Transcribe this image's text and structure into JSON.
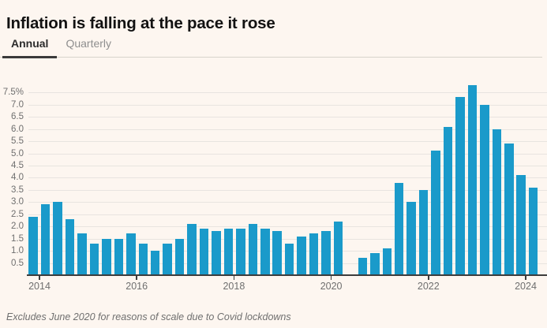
{
  "tabs": [
    {
      "label": "Annual",
      "active": true
    },
    {
      "label": "Quarterly",
      "active": false
    }
  ],
  "chart_data": {
    "type": "bar",
    "title": "Inflation is falling at the pace it rose",
    "note": "Excludes June 2020 for reasons of scale due to Covid lockdowns",
    "bar_color": "#1a9aca",
    "background_color": "#fdf6f0",
    "grid": true,
    "ylim": [
      0,
      8
    ],
    "yticks": [
      "7.5%",
      "7.0",
      "6.5",
      "6.0",
      "5.5",
      "5.0",
      "4.5",
      "4.0",
      "3.5",
      "3.0",
      "2.5",
      "2.0",
      "1.5",
      "1.0",
      "0.5"
    ],
    "year_ticks": [
      "2014",
      "2016",
      "2018",
      "2020",
      "2022",
      "2024"
    ],
    "excluded_quarter": "Q2 2020",
    "quarters": [
      {
        "label": "Q4 2013",
        "value": 2.4
      },
      {
        "label": "Q1 2014",
        "value": 2.9
      },
      {
        "label": "Q2 2014",
        "value": 3.0
      },
      {
        "label": "Q3 2014",
        "value": 2.3
      },
      {
        "label": "Q4 2014",
        "value": 1.7
      },
      {
        "label": "Q1 2015",
        "value": 1.3
      },
      {
        "label": "Q2 2015",
        "value": 1.5
      },
      {
        "label": "Q3 2015",
        "value": 1.5
      },
      {
        "label": "Q4 2015",
        "value": 1.7
      },
      {
        "label": "Q1 2016",
        "value": 1.3
      },
      {
        "label": "Q2 2016",
        "value": 1.0
      },
      {
        "label": "Q3 2016",
        "value": 1.3
      },
      {
        "label": "Q4 2016",
        "value": 1.5
      },
      {
        "label": "Q1 2017",
        "value": 2.1
      },
      {
        "label": "Q2 2017",
        "value": 1.9
      },
      {
        "label": "Q3 2017",
        "value": 1.8
      },
      {
        "label": "Q4 2017",
        "value": 1.9
      },
      {
        "label": "Q1 2018",
        "value": 1.9
      },
      {
        "label": "Q2 2018",
        "value": 2.1
      },
      {
        "label": "Q3 2018",
        "value": 1.9
      },
      {
        "label": "Q4 2018",
        "value": 1.8
      },
      {
        "label": "Q1 2019",
        "value": 1.3
      },
      {
        "label": "Q2 2019",
        "value": 1.6
      },
      {
        "label": "Q3 2019",
        "value": 1.7
      },
      {
        "label": "Q4 2019",
        "value": 1.8
      },
      {
        "label": "Q1 2020",
        "value": 2.2
      },
      {
        "label": "Q2 2020",
        "value": null,
        "excluded": true
      },
      {
        "label": "Q3 2020",
        "value": 0.7
      },
      {
        "label": "Q4 2020",
        "value": 0.9
      },
      {
        "label": "Q1 2021",
        "value": 1.1
      },
      {
        "label": "Q2 2021",
        "value": 3.8
      },
      {
        "label": "Q3 2021",
        "value": 3.0
      },
      {
        "label": "Q4 2021",
        "value": 3.5
      },
      {
        "label": "Q1 2022",
        "value": 5.1
      },
      {
        "label": "Q2 2022",
        "value": 6.1
      },
      {
        "label": "Q3 2022",
        "value": 7.3
      },
      {
        "label": "Q4 2022",
        "value": 7.8
      },
      {
        "label": "Q1 2023",
        "value": 7.0
      },
      {
        "label": "Q2 2023",
        "value": 6.0
      },
      {
        "label": "Q3 2023",
        "value": 5.4
      },
      {
        "label": "Q4 2023",
        "value": 4.1
      },
      {
        "label": "Q1 2024",
        "value": 3.6
      }
    ]
  }
}
